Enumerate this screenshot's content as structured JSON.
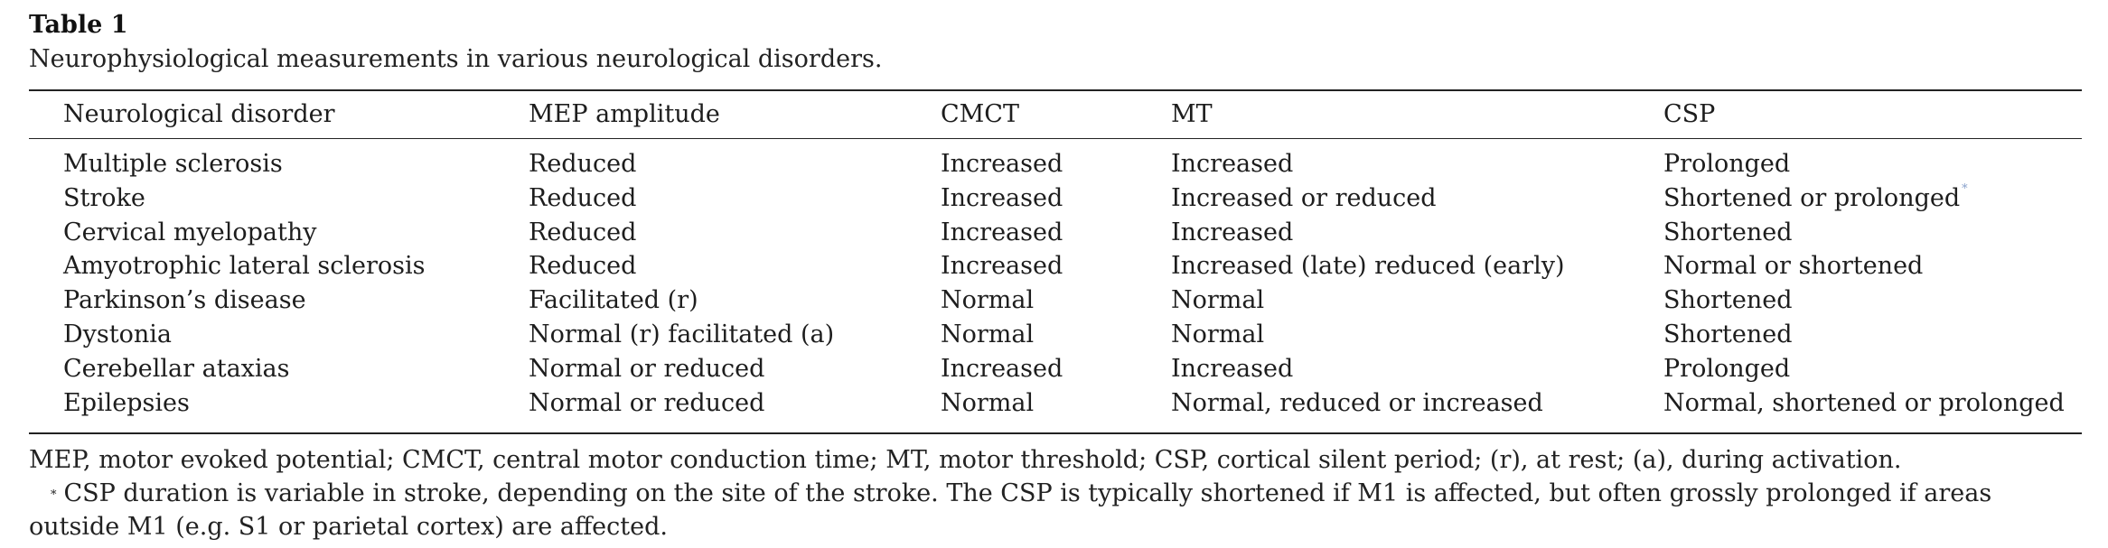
{
  "table": {
    "label": "Table 1",
    "caption": "Neurophysiological measurements in various neurological disorders.",
    "headers": [
      "Neurological disorder",
      "MEP amplitude",
      "CMCT",
      "MT",
      "CSP"
    ],
    "rows": [
      [
        "Multiple sclerosis",
        "Reduced",
        "Increased",
        "Increased",
        "Prolonged"
      ],
      [
        "Stroke",
        "Reduced",
        "Increased",
        "Increased or reduced",
        "Shortened or prolonged"
      ],
      [
        "Cervical myelopathy",
        "Reduced",
        "Increased",
        "Increased",
        "Shortened"
      ],
      [
        "Amyotrophic lateral sclerosis",
        "Reduced",
        "Increased",
        "Increased (late) reduced (early)",
        "Normal or shortened"
      ],
      [
        "Parkinson’s disease",
        "Facilitated (r)",
        "Normal",
        "Normal",
        "Shortened"
      ],
      [
        "Dystonia",
        "Normal (r) facilitated (a)",
        "Normal",
        "Normal",
        "Shortened"
      ],
      [
        "Cerebellar ataxias",
        "Normal or reduced",
        "Increased",
        "Increased",
        "Prolonged"
      ],
      [
        "Epilepsies",
        "Normal or reduced",
        "Normal",
        "Normal, reduced or increased",
        "Normal, shortened or prolonged"
      ]
    ],
    "footnote_marker": "*",
    "abbreviations": "MEP, motor evoked potential; CMCT, central motor conduction time; MT, motor threshold; CSP, cortical silent period; (r), at rest; (a), during activation.",
    "footnote": "CSP duration is variable in stroke, depending on the site of the stroke. The CSP is typically shortened if M1 is affected, but often grossly prolonged if areas outside M1 (e.g. S1 or parietal cortex) are affected."
  }
}
